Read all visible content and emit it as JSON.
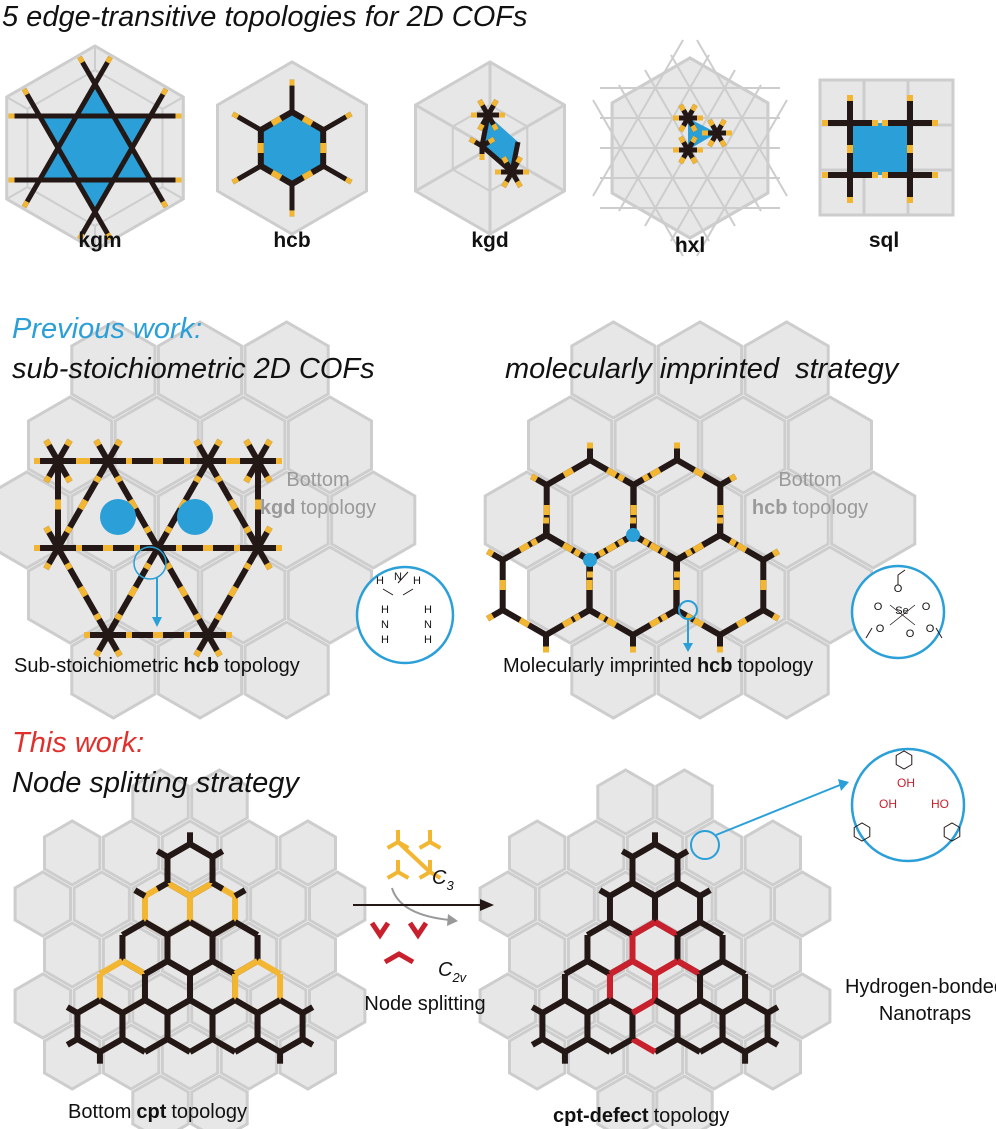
{
  "header": {
    "title": "5 edge-transitive topologies for 2D COFs"
  },
  "topologies": [
    "kgm",
    "hcb",
    "kgd",
    "hxl",
    "sql"
  ],
  "previous_work": {
    "label": "Previous work:",
    "left": {
      "title": "sub-stoichiometric 2D COFs",
      "bottom_label": "Bottom",
      "bottom_topology": "kgd",
      "bottom_suffix": "topology",
      "inset_atoms": [
        "H",
        "N",
        "H",
        "H",
        "N",
        "H",
        "H",
        "N",
        "H"
      ],
      "caption": {
        "prefix": "Sub-stoichiometric",
        "bold": "hcb",
        "suffix": "topology"
      }
    },
    "right": {
      "title": "molecularly imprinted  strategy",
      "bottom_label": "Bottom",
      "bottom_topology": "hcb",
      "bottom_suffix": "topology",
      "inset_atoms": [
        "O",
        "O",
        "Se",
        "O",
        "O",
        "O",
        "O"
      ],
      "caption": {
        "prefix": "Molecularly imprinted",
        "bold": "hcb",
        "suffix": "topology"
      }
    }
  },
  "this_work": {
    "label": "This work:",
    "title": "Node splitting strategy",
    "left_caption": {
      "prefix": "Bottom",
      "bold": "cpt",
      "suffix": "topology"
    },
    "c3": {
      "symbol": "C",
      "subscript": "3"
    },
    "c2v": {
      "symbol": "C",
      "subscript": "2v"
    },
    "process": "Node splitting",
    "right_caption": {
      "bold": "cpt-defect",
      "suffix": "topology"
    },
    "inset_groups": [
      "OH",
      "OH",
      "HO"
    ],
    "inset_label": [
      "Hydrogen-bonded",
      "Nanotraps"
    ]
  }
}
